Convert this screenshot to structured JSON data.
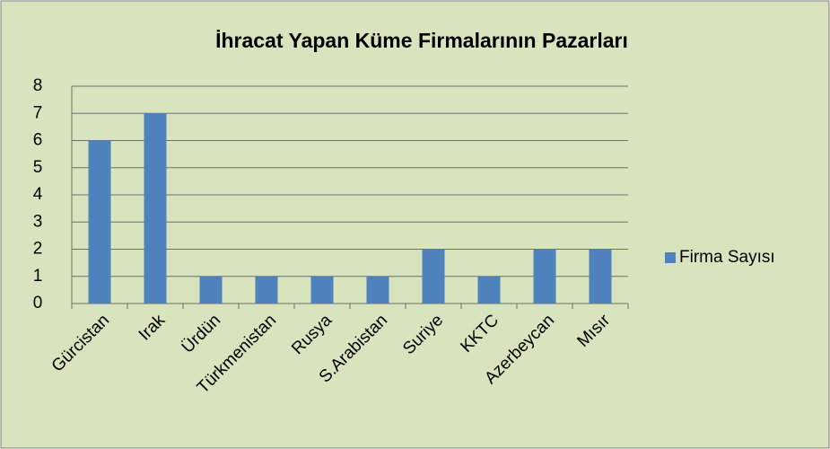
{
  "chart_data": {
    "type": "bar",
    "title": "İhracat Yapan Küme Firmalarının Pazarları",
    "categories": [
      "Gürcistan",
      "Irak",
      "Ürdün",
      "Türkmenistan",
      "Rusya",
      "S.Arabistan",
      "Suriye",
      "KKTC",
      "Azerbeycan",
      "Mısır"
    ],
    "series": [
      {
        "name": "Firma Sayısı",
        "color": "#4f81bd",
        "values": [
          6,
          7,
          1,
          1,
          1,
          1,
          2,
          1,
          2,
          2
        ]
      }
    ],
    "ylim": [
      0,
      8
    ],
    "yticks": [
      0,
      1,
      2,
      3,
      4,
      5,
      6,
      7,
      8
    ],
    "grid": true,
    "legend": "right"
  }
}
